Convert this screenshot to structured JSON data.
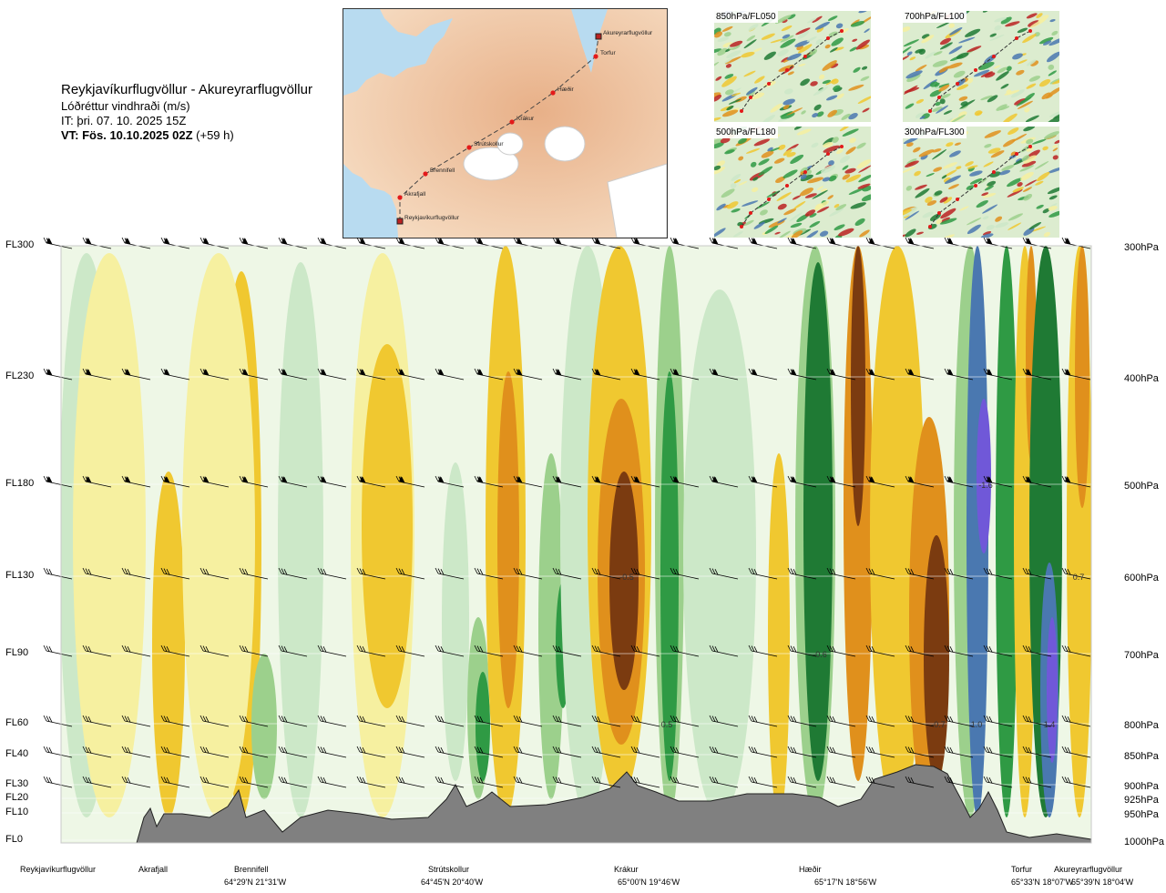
{
  "header": {
    "title": "Reykjavíkurflugvöllur - Akureyrarflugvöllur",
    "subtitle": "Lóðréttur vindhraði (m/s)",
    "issue_time": "IT: þri. 07. 10. 2025 15Z",
    "valid_time_bold": "VT: Fös. 10.10.2025 02Z",
    "valid_time_offset": "(+59 h)"
  },
  "map": {
    "stations": [
      "Akureyrarflugvöllur",
      "Torfur",
      "Hæðir",
      "Krákur",
      "Strútskollur",
      "Brennifell",
      "Akrafjall",
      "Reykjavíkurflugvöllur"
    ]
  },
  "thumbnails": [
    {
      "label": "850hPa/FL050"
    },
    {
      "label": "700hPa/FL100"
    },
    {
      "label": "500hPa/FL180"
    },
    {
      "label": "300hPa/FL300"
    }
  ],
  "chart_data": {
    "type": "heatmap",
    "title": "Reykjavíkurflugvöllur - Akureyrarflugvöllur",
    "variable": "Lóðréttur vindhraði (m/s)",
    "y_left_labels": [
      {
        "label": "FL300",
        "hpa": 300
      },
      {
        "label": "FL230",
        "hpa": 400
      },
      {
        "label": "FL180",
        "hpa": 500
      },
      {
        "label": "FL130",
        "hpa": 600
      },
      {
        "label": "FL90",
        "hpa": 700
      },
      {
        "label": "FL60",
        "hpa": 800
      },
      {
        "label": "FL40",
        "hpa": 850
      },
      {
        "label": "FL30",
        "hpa": 900
      },
      {
        "label": "FL20",
        "hpa": 925
      },
      {
        "label": "FL10",
        "hpa": 950
      },
      {
        "label": "FL0",
        "hpa": 1000
      }
    ],
    "y_right_labels": [
      "300hPa",
      "400hPa",
      "500hPa",
      "600hPa",
      "700hPa",
      "800hPa",
      "850hPa",
      "900hPa",
      "925hPa",
      "950hPa",
      "1000hPa"
    ],
    "pressure_levels": [
      300,
      400,
      500,
      600,
      700,
      800,
      850,
      900,
      925,
      950,
      1000
    ],
    "x_stations": [
      {
        "name": "Reykjavíkurflugvöllur",
        "coord": ""
      },
      {
        "name": "Akrafjall",
        "coord": ""
      },
      {
        "name": "Brennifell",
        "coord": "64°29'N 21°31'W"
      },
      {
        "name": "Strútskollur",
        "coord": "64°45'N 20°40'W"
      },
      {
        "name": "Krákur",
        "coord": "65°00'N 19°46'W"
      },
      {
        "name": "Hæðir",
        "coord": "65°17'N 18°56'W"
      },
      {
        "name": "Torfur",
        "coord": "65°33'N 18°07'W"
      },
      {
        "name": "Akureyrarflugvöllur",
        "coord": "65°39'N 18°04'W"
      }
    ],
    "annotations": [
      {
        "text": "-0.5",
        "hpa": 600,
        "near": "Krákur"
      },
      {
        "text": "-0.6",
        "hpa": 700,
        "near": "Hæðir"
      },
      {
        "text": "0.5",
        "hpa": 800,
        "near": "Krákur"
      },
      {
        "text": "-1.6",
        "hpa": 500,
        "near": "Torfur"
      },
      {
        "text": "0.7",
        "hpa": 600,
        "near": "Akureyrarflugvöllur"
      },
      {
        "text": "-0.7",
        "hpa": 800,
        "near": "Hæðir"
      },
      {
        "text": "1.0",
        "hpa": 800,
        "near": "Torfur"
      },
      {
        "text": "1.4",
        "hpa": 800,
        "near": "Torfur"
      }
    ],
    "colors": {
      "strong_down": "#7b3b10",
      "down2": "#e0901c",
      "down1": "#f0c830",
      "weak_down": "#f6f0a0",
      "neutral": "#eef7e6",
      "weak_up": "#cce8c8",
      "up1": "#9cd08c",
      "up2": "#2f9a44",
      "up3": "#1f7a34",
      "strong_up": "#4a78b0",
      "very_strong_up": "#7058d8",
      "terrain": "#808080"
    }
  }
}
